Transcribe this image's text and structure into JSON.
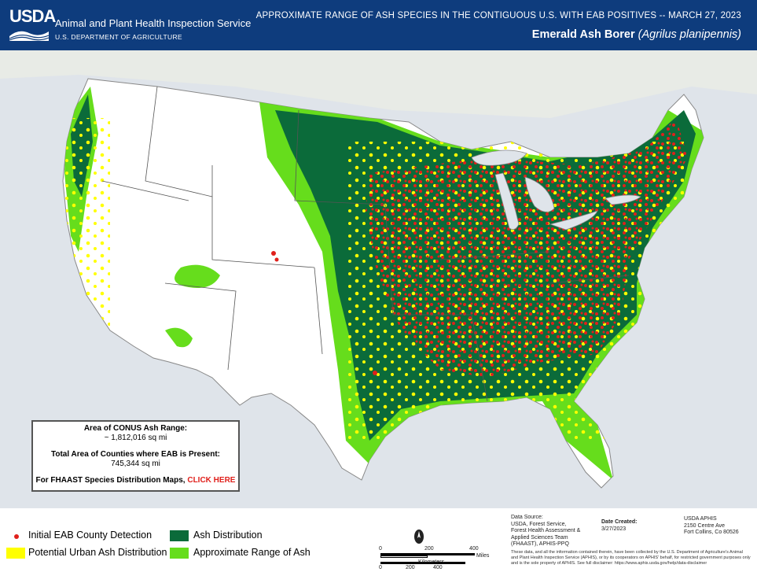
{
  "header": {
    "logo_text": "USDA",
    "agency": "Animal and Plant Health Inspection Service",
    "department": "U.S. DEPARTMENT OF AGRICULTURE",
    "map_title": "APPROXIMATE RANGE OF ASH SPECIES IN THE CONTIGUOUS U.S. WITH EAB POSITIVES -- MARCH 27, 2023",
    "subtitle_common": "Emerald Ash Borer",
    "subtitle_latin": "(Agrilus planipennis)"
  },
  "stats": {
    "area_label": "Area of CONUS Ash Range:",
    "area_value": "~ 1,812,016 sq mi",
    "eab_label": "Total Area of Counties where EAB is Present:",
    "eab_value": "745,344 sq mi",
    "link_prefix": "For FHAAST Species Distribution Maps, ",
    "link_text": "CLICK HERE"
  },
  "legend": {
    "items": [
      {
        "label": "Initial EAB County Detection",
        "color": "#e0201b"
      },
      {
        "label": "Potential Urban Ash Distribution",
        "color": "#ffff00"
      },
      {
        "label": "Ash Distribution",
        "color": "#0b6b3a"
      },
      {
        "label": "Approximate Range of Ash",
        "color": "#66dd1c"
      }
    ]
  },
  "scale": {
    "miles_ticks": [
      "0",
      "200",
      "400"
    ],
    "miles_unit": "Miles",
    "km_ticks": [
      "0",
      "200",
      "400"
    ],
    "km_unit": "Kilometers"
  },
  "source": {
    "data_source_label": "Data Source:",
    "data_source_lines": [
      "USDA, Forest Service,",
      "Forest Health Assessment &",
      "Applied Sciences Team",
      "(FHAAST), APHIS-PPQ"
    ],
    "date_label": "Date Created:",
    "date_value": "3/27/2023",
    "org_lines": [
      "USDA APHIS",
      "2150 Centre Ave",
      "Fort Collins, Co 80526"
    ],
    "disclaimer": "These data, and all the information contained therein, have been collected by the U.S. Department of Agriculture's Animal and Plant Health Inspection Service (APHIS), or by its cooperators on APHIS' behalf, for restricted government purposes only and is the sole property of APHIS. See full disclaimer: https://www.aphis.usda.gov/help/data-disclaimer"
  },
  "colors": {
    "header_bg": "#0e3c7d",
    "map_bg": "#dfe4ea",
    "land": "#ffffff",
    "ash_distribution": "#0b6b3a",
    "approx_range": "#66dd1c",
    "urban_ash": "#ffff00",
    "eab_detection": "#e0201b"
  }
}
